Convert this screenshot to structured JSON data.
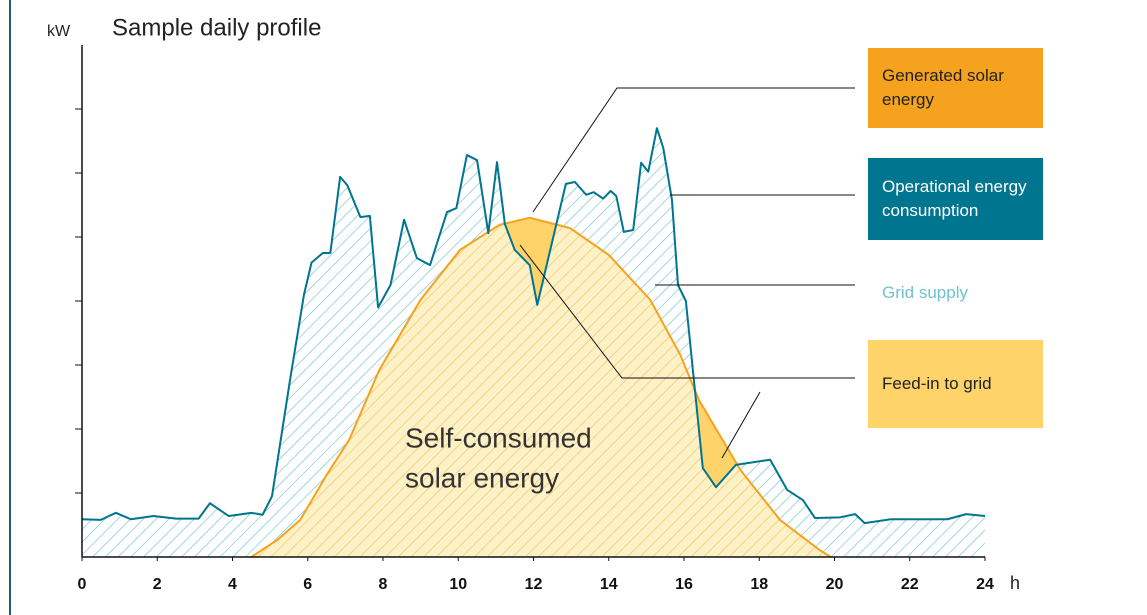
{
  "chart_data": {
    "type": "area",
    "title": "Sample daily profile",
    "y_label": "kW",
    "x_label": "h",
    "xlim": [
      0,
      24
    ],
    "xticks": [
      0,
      2,
      4,
      6,
      8,
      10,
      12,
      14,
      16,
      18,
      20,
      22,
      24
    ],
    "ylim": [
      0,
      8
    ],
    "yticks": [
      1,
      2,
      3,
      4,
      5,
      6,
      7
    ],
    "grid": false,
    "annotation": [
      "Self-consumed",
      "solar energy"
    ],
    "series": [
      {
        "name": "Operational energy consumption",
        "color": "#00758f",
        "x": [
          0,
          0.5,
          0.9,
          1.3,
          1.9,
          2.5,
          3.1,
          3.4,
          3.9,
          4.5,
          4.8,
          5.05,
          5.53,
          5.9,
          6.1,
          6.4,
          6.6,
          6.86,
          7.05,
          7.4,
          7.65,
          7.87,
          8.2,
          8.56,
          8.9,
          9.25,
          9.7,
          9.95,
          10.23,
          10.5,
          10.8,
          11.03,
          11.24,
          11.5,
          11.9,
          12.1,
          12.86,
          13.1,
          13.4,
          13.6,
          13.85,
          14.05,
          14.2,
          14.4,
          14.65,
          14.86,
          15.05,
          15.28,
          15.45,
          15.68,
          15.84,
          16.05,
          16.5,
          16.85,
          17.38,
          18.29,
          18.74,
          19.16,
          19.48,
          20.15,
          20.55,
          20.8,
          21.5,
          22.3,
          23.0,
          23.5,
          24
        ],
        "values": [
          0.59,
          0.58,
          0.69,
          0.59,
          0.64,
          0.6,
          0.6,
          0.84,
          0.64,
          0.69,
          0.66,
          0.95,
          2.77,
          4.1,
          4.6,
          4.75,
          4.75,
          5.94,
          5.81,
          5.31,
          5.33,
          3.9,
          4.25,
          5.27,
          4.67,
          4.56,
          5.39,
          5.45,
          6.28,
          6.2,
          5.06,
          6.17,
          5.2,
          4.8,
          4.56,
          3.94,
          5.83,
          5.86,
          5.66,
          5.7,
          5.6,
          5.72,
          5.64,
          5.08,
          5.11,
          6.16,
          6.02,
          6.7,
          6.39,
          5.58,
          4.25,
          4.0,
          1.39,
          1.09,
          1.44,
          1.52,
          1.05,
          0.89,
          0.61,
          0.62,
          0.67,
          0.53,
          0.59,
          0.59,
          0.59,
          0.67,
          0.64
        ]
      },
      {
        "name": "Generated solar energy",
        "color": "#f5a21e",
        "x": [
          4.5,
          5.2,
          5.8,
          6.5,
          7.1,
          7.9,
          9.0,
          10.05,
          11.1,
          11.9,
          12.97,
          14.0,
          15.1,
          15.9,
          16.4,
          17.5,
          18.55,
          19.6,
          19.9
        ],
        "values": [
          0,
          0.27,
          0.58,
          1.28,
          1.83,
          2.92,
          4.02,
          4.8,
          5.19,
          5.3,
          5.14,
          4.72,
          4.02,
          3.16,
          2.45,
          1.36,
          0.58,
          0.11,
          0
        ]
      }
    ],
    "areas": [
      {
        "name": "Grid supply",
        "color": "#6fc3d0"
      },
      {
        "name": "Feed-in to grid",
        "color": "#fdd36a"
      }
    ]
  }
}
